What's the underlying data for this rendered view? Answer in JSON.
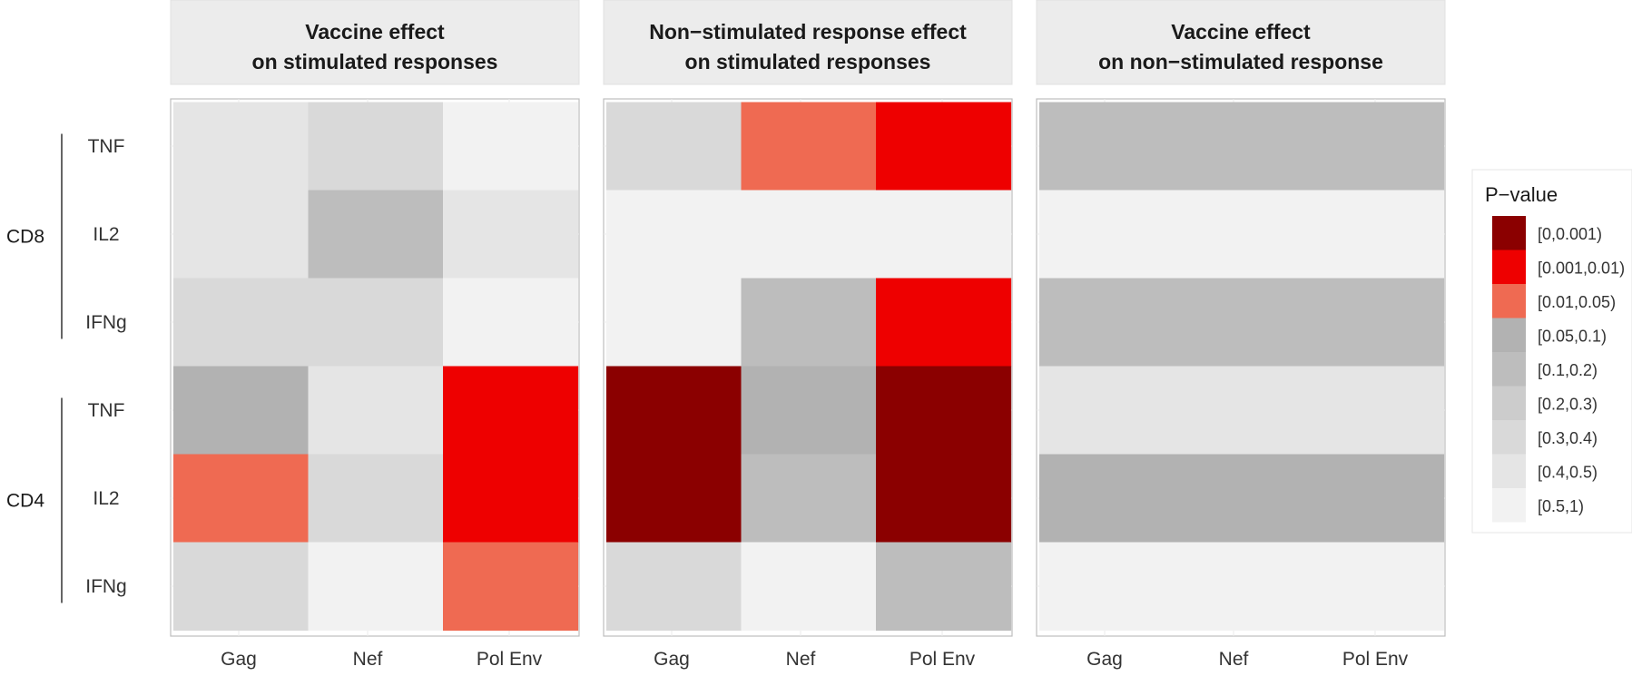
{
  "chart_data": {
    "type": "heatmap",
    "columns": [
      "Gag",
      "Nef",
      "Pol Env"
    ],
    "rows": [
      "TNF",
      "IL2",
      "IFNg",
      "TNF",
      "IL2",
      "IFNg"
    ],
    "groups": [
      {
        "label": "CD8",
        "rows": [
          "TNF",
          "IL2",
          "IFNg"
        ]
      },
      {
        "label": "CD4",
        "rows": [
          "TNF",
          "IL2",
          "IFNg"
        ]
      }
    ],
    "legend": {
      "title": "P−value",
      "position": "right",
      "bins": [
        {
          "label": "[0,0.001)",
          "color": "#8b0000"
        },
        {
          "label": "[0.001,0.01)",
          "color": "#ee0000"
        },
        {
          "label": "[0.01,0.05)",
          "color": "#ef6a52"
        },
        {
          "label": "[0.05,0.1)",
          "color": "#b2b2b2"
        },
        {
          "label": "[0.1,0.2)",
          "color": "#bdbdbd"
        },
        {
          "label": "[0.2,0.3)",
          "color": "#cccccc"
        },
        {
          "label": "[0.3,0.4)",
          "color": "#d9d9d9"
        },
        {
          "label": "[0.4,0.5)",
          "color": "#e5e5e5"
        },
        {
          "label": "[0.5,1)",
          "color": "#f2f2f2"
        }
      ]
    },
    "panels": [
      {
        "title_lines": [
          "Vaccine effect",
          "on stimulated responses"
        ],
        "bins": [
          [
            7,
            6,
            8
          ],
          [
            7,
            4,
            7
          ],
          [
            6,
            6,
            8
          ],
          [
            3,
            7,
            1
          ],
          [
            2,
            6,
            1
          ],
          [
            6,
            8,
            2
          ]
        ]
      },
      {
        "title_lines": [
          "Non−stimulated response effect",
          "on stimulated responses"
        ],
        "bins": [
          [
            6,
            2,
            1
          ],
          [
            8,
            8,
            8
          ],
          [
            8,
            4,
            1
          ],
          [
            0,
            3,
            0
          ],
          [
            0,
            4,
            0
          ],
          [
            6,
            8,
            4
          ]
        ]
      },
      {
        "title_lines": [
          "Vaccine effect",
          "on non−stimulated response"
        ],
        "bins": [
          [
            4,
            4,
            4
          ],
          [
            8,
            8,
            8
          ],
          [
            4,
            4,
            4
          ],
          [
            7,
            7,
            7
          ],
          [
            3,
            3,
            3
          ],
          [
            8,
            8,
            8
          ]
        ]
      }
    ],
    "grid": true
  }
}
